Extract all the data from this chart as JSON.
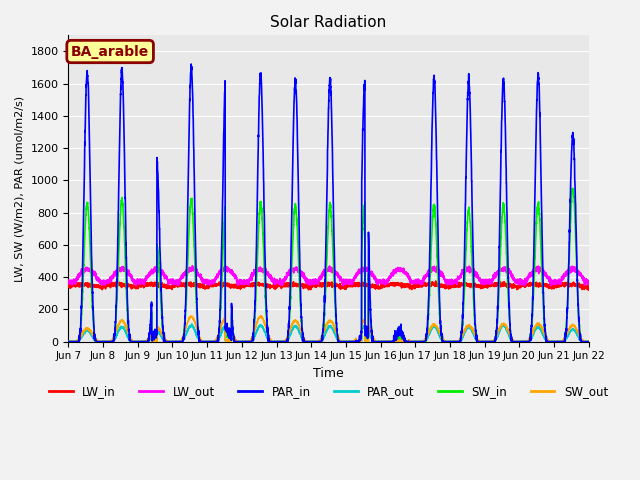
{
  "title": "Solar Radiation",
  "xlabel": "Time",
  "ylabel": "LW, SW (W/m2), PAR (umol/m2/s)",
  "annotation": "BA_arable",
  "annotation_bbox": {
    "facecolor": "#FFFF99",
    "edgecolor": "#8B0000",
    "boxstyle": "round,pad=0.3"
  },
  "annotation_fontcolor": "#8B0000",
  "ylim": [
    0,
    1900
  ],
  "yticks": [
    0,
    200,
    400,
    600,
    800,
    1000,
    1200,
    1400,
    1600,
    1800
  ],
  "background_color": "#E8E8E8",
  "grid_color": "#FFFFFF",
  "line_colors": {
    "LW_in": "#FF0000",
    "LW_out": "#FF00FF",
    "PAR_in": "#0000FF",
    "PAR_out": "#00CCCC",
    "SW_in": "#00EE00",
    "SW_out": "#FFA500"
  },
  "line_widths": {
    "LW_in": 1.2,
    "LW_out": 1.2,
    "PAR_in": 1.2,
    "PAR_out": 1.2,
    "SW_in": 1.2,
    "SW_out": 1.2
  },
  "n_days": 15,
  "xticklabels": [
    "Jun 7",
    "Jun 8",
    "Jun 9",
    "Jun 10",
    "Jun 11",
    "Jun 12",
    "Jun 13",
    "Jun 14",
    "Jun 15",
    "Jun 16",
    "Jun 17",
    "Jun 18",
    "Jun 19",
    "Jun 20",
    "Jun 21",
    "Jun 22"
  ],
  "figsize": [
    6.4,
    4.8
  ],
  "dpi": 100
}
